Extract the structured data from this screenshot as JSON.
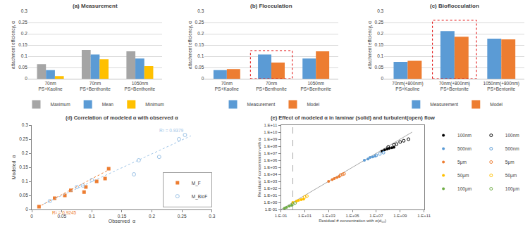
{
  "chart_data": [
    {
      "type": "bar",
      "title": "(a) Measurement",
      "y_label": "attachment efficiency, α",
      "categories": [
        "70nm PS+Kaoline",
        "70nm PS+Benthonite",
        "1050nm PS+Benthonite"
      ],
      "series": [
        {
          "name": "Maximum",
          "color": "#a5a5a5",
          "values": [
            0.065,
            0.128,
            0.122
          ]
        },
        {
          "name": "Mean",
          "color": "#5b9bd5",
          "values": [
            0.038,
            0.108,
            0.09
          ]
        },
        {
          "name": "Minimum",
          "color": "#ffc000",
          "values": [
            0.012,
            0.087,
            0.056
          ]
        }
      ],
      "ylim": [
        0,
        0.3
      ],
      "yticks": [
        0,
        0.05,
        0.1,
        0.15,
        0.2,
        0.25,
        0.3
      ],
      "grid": true,
      "legend": "bottom"
    },
    {
      "type": "bar",
      "title": "(b) Flocculation",
      "y_label": "attachment efficiency, α",
      "categories": [
        "70nm PS+Kaoline",
        "70nm PS+Benthonite",
        "1050nm PS+Benthonite"
      ],
      "series": [
        {
          "name": "Measurement",
          "color": "#5b9bd5",
          "values": [
            0.038,
            0.108,
            0.09
          ]
        },
        {
          "name": "Model",
          "color": "#ed7d31",
          "values": [
            0.043,
            0.072,
            0.122
          ]
        }
      ],
      "highlight": {
        "category": "70nm PS+Benthonite",
        "y": [
          0,
          0.125
        ]
      },
      "ylim": [
        0,
        0.3
      ],
      "yticks": [
        0,
        0.05,
        0.1,
        0.15,
        0.2,
        0.25,
        0.3
      ],
      "grid": true,
      "legend": "bottom"
    },
    {
      "type": "bar",
      "title": "(c) Bioflocculation",
      "y_label": "attachment efficiency, α",
      "categories": [
        "70nm(+800nm) PS+Kaoline",
        "70nm(+800nm) PS+Bentonite",
        "1050nm(+800nm) PS+Bentonite"
      ],
      "series": [
        {
          "name": "Measurement",
          "color": "#5b9bd5",
          "values": [
            0.075,
            0.212,
            0.178
          ]
        },
        {
          "name": "Model",
          "color": "#ed7d31",
          "values": [
            0.08,
            0.187,
            0.175
          ]
        }
      ],
      "highlight": {
        "category": "70nm(+800nm) PS+Bentonite",
        "y": [
          0,
          0.26
        ]
      },
      "ylim": [
        0,
        0.3
      ],
      "yticks": [
        0,
        0.05,
        0.1,
        0.15,
        0.2,
        0.25,
        0.3
      ],
      "grid": true,
      "legend": "bottom"
    },
    {
      "type": "scatter",
      "title": "(d) Correlation of modeled α with observed α",
      "x_label": "Observed  α",
      "y_label": "Modeled  α",
      "series": [
        {
          "name": "M_F",
          "color": "#ed7d31",
          "marker": "square",
          "x": [
            0.012,
            0.038,
            0.055,
            0.065,
            0.087,
            0.09,
            0.108,
            0.122,
            0.128
          ],
          "values": [
            0.01,
            0.04,
            0.05,
            0.068,
            0.062,
            0.08,
            0.1,
            0.11,
            0.145
          ],
          "trendline": {
            "x": [
              0.01,
              0.13
            ],
            "values": [
              0.008,
              0.143
            ],
            "label": "R² = 0.9245"
          }
        },
        {
          "name": "M_BioF",
          "color": "#9dc3e6",
          "marker": "circle-open",
          "x": [
            0.03,
            0.075,
            0.085,
            0.1,
            0.17,
            0.178,
            0.212,
            0.245,
            0.255
          ],
          "values": [
            0.03,
            0.08,
            0.085,
            0.105,
            0.125,
            0.175,
            0.187,
            0.25,
            0.265
          ],
          "trendline": {
            "x": [
              0.02,
              0.265
            ],
            "values": [
              0.02,
              0.262
            ],
            "label": "R² = 0.9379"
          }
        }
      ],
      "xlim": [
        0,
        0.3
      ],
      "xticks": [
        0,
        0.05,
        0.1,
        0.15,
        0.2,
        0.25,
        0.3
      ],
      "ylim": [
        0,
        0.3
      ],
      "yticks": [
        0,
        0.05,
        0.1,
        0.15,
        0.2,
        0.25,
        0.3
      ],
      "grid": false,
      "legend": "lower right"
    },
    {
      "type": "scatter",
      "title": "(e) Effect of modeled α in laminar (solid) and turbulent(open) flow",
      "x_label": "Residual # concentration with α(d₅₀)",
      "y_label": "Residual # concentration with αᵢ",
      "log": true,
      "grid": false,
      "legend": "right",
      "series": [
        {
          "name": "100nm",
          "color": "#000000",
          "marker": "circle",
          "x": [
            30000000.0,
            50000000.0,
            80000000.0,
            120000000.0,
            200000000.0,
            300000000.0
          ],
          "values": [
            20000000.0,
            30000000.0,
            40000000.0,
            50000000.0,
            60000000.0,
            70000000.0
          ]
        },
        {
          "name": "500nm",
          "color": "#5b9bd5",
          "marker": "circle",
          "x": [
            1000000.0,
            2000000.0,
            3000000.0,
            5000000.0,
            8000000.0
          ],
          "values": [
            1000000.0,
            1500000.0,
            2500000.0,
            3000000.0,
            4000000.0
          ]
        },
        {
          "name": "5μm",
          "color": "#ed7d31",
          "marker": "circle",
          "x": [
            1000,
            2000,
            3000,
            5000,
            8000
          ],
          "values": [
            1000,
            1800,
            2500,
            3500,
            5000
          ]
        },
        {
          "name": "50μm",
          "color": "#ffc000",
          "marker": "circle",
          "x": [
            1,
            2,
            3,
            5,
            8
          ],
          "values": [
            1,
            1.5,
            2,
            2.5,
            3
          ]
        },
        {
          "name": "100μm",
          "color": "#70ad47",
          "marker": "circle",
          "x": [
            0.2,
            0.3,
            0.5,
            0.8
          ],
          "values": [
            0.15,
            0.2,
            0.3,
            0.4
          ]
        },
        {
          "name": "100nm",
          "color": "#000000",
          "marker": "circle-open",
          "x": [
            100000000.0,
            300000000.0,
            500000000.0,
            1000000000.0,
            2000000000.0,
            5000000000.0
          ],
          "values": [
            80000000.0,
            150000000.0,
            200000000.0,
            400000000.0,
            600000000.0,
            1000000000.0
          ]
        },
        {
          "name": "500nm",
          "color": "#5b9bd5",
          "marker": "circle-open",
          "x": [
            10000000.0,
            20000000.0,
            40000000.0
          ],
          "values": [
            5000000.0,
            8000000.0,
            12000000.0
          ]
        },
        {
          "name": "5μm",
          "color": "#ed7d31",
          "marker": "circle-open",
          "x": [
            10000,
            15000,
            20000
          ],
          "values": [
            8000,
            10000,
            12000
          ]
        },
        {
          "name": "50μm",
          "color": "#ffc000",
          "marker": "circle-open",
          "x": [
            10,
            15
          ],
          "values": [
            6,
            8
          ]
        },
        {
          "name": "100μm",
          "color": "#70ad47",
          "marker": "circle-open",
          "x": [
            1,
            1.5
          ],
          "values": [
            0.6,
            0.8
          ]
        }
      ],
      "reference_line": {
        "x": [
          0.1,
          10000000000.0
        ],
        "values": [
          0.1,
          10000000000.0
        ]
      },
      "vline": 1,
      "xlim": [
        0.1,
        100000000000.0
      ],
      "xticks": [
        {
          "value": 0.1,
          "label": "1.E-01"
        },
        {
          "value": 10,
          "label": "1.E+01"
        },
        {
          "value": 1000,
          "label": "1.E+03"
        },
        {
          "value": 100000,
          "label": "1.E+05"
        },
        {
          "value": 10000000,
          "label": "1.E+07"
        },
        {
          "value": 1000000000,
          "label": "1.E+09"
        },
        {
          "value": 100000000000,
          "label": "1.E+11"
        }
      ],
      "ylim": [
        0.1,
        100000000000.0
      ],
      "yticks": [
        {
          "value": 0.1,
          "label": "1.E-01"
        },
        {
          "value": 1,
          "label": "1.E+00"
        },
        {
          "value": 10,
          "label": "1.E+01"
        },
        {
          "value": 100,
          "label": "1.E+02"
        },
        {
          "value": 1000,
          "label": "1.E+03"
        },
        {
          "value": 10000,
          "label": "1.E+04"
        },
        {
          "value": 100000,
          "label": "1.E+05"
        },
        {
          "value": 1000000,
          "label": "1.E+06"
        },
        {
          "value": 10000000,
          "label": "1.E+07"
        },
        {
          "value": 100000000,
          "label": "1.E+08"
        },
        {
          "value": 1000000000,
          "label": "1.E+09"
        },
        {
          "value": 10000000000,
          "label": "1.E+10"
        },
        {
          "value": 100000000000,
          "label": "1.E+11"
        }
      ]
    }
  ]
}
